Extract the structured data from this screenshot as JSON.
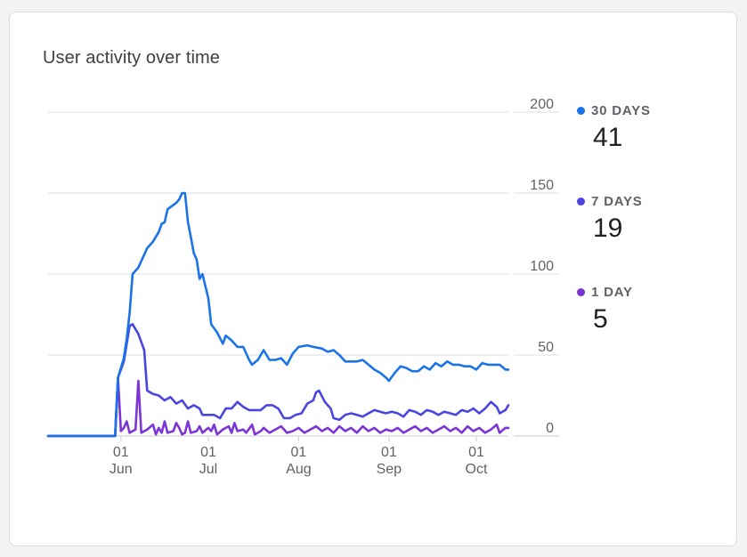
{
  "card": {
    "title": "User activity over time"
  },
  "legend": [
    {
      "label": "30 DAYS",
      "value": "41",
      "color": "#1a73e8"
    },
    {
      "label": "7 DAYS",
      "value": "19",
      "color": "#4a45e0"
    },
    {
      "label": "1 DAY",
      "value": "5",
      "color": "#7b34d6"
    }
  ],
  "chart_data": {
    "type": "line",
    "title": "User activity over time",
    "ylim": [
      0,
      200
    ],
    "yticks": [
      0,
      50,
      100,
      150,
      200
    ],
    "grid": true,
    "legend_placement": "right",
    "x_start": "2024-05-07",
    "x_end": "2024-10-12",
    "x_tick_dates": [
      "2024-06-01",
      "2024-07-01",
      "2024-08-01",
      "2024-09-01",
      "2024-10-01"
    ],
    "x_tick_labels": [
      {
        "day": "01",
        "month": "Jun"
      },
      {
        "day": "01",
        "month": "Jul"
      },
      {
        "day": "01",
        "month": "Aug"
      },
      {
        "day": "01",
        "month": "Sep"
      },
      {
        "day": "01",
        "month": "Oct"
      }
    ],
    "series": [
      {
        "name": "30 DAYS",
        "color": "#1a73e8",
        "points": [
          [
            "2024-05-07",
            0
          ],
          [
            "2024-05-30",
            0
          ],
          [
            "2024-05-31",
            36
          ],
          [
            "2024-06-02",
            48
          ],
          [
            "2024-06-03",
            60
          ],
          [
            "2024-06-04",
            76
          ],
          [
            "2024-06-05",
            100
          ],
          [
            "2024-06-07",
            104
          ],
          [
            "2024-06-08",
            108
          ],
          [
            "2024-06-10",
            116
          ],
          [
            "2024-06-12",
            120
          ],
          [
            "2024-06-14",
            126
          ],
          [
            "2024-06-15",
            131
          ],
          [
            "2024-06-16",
            132
          ],
          [
            "2024-06-17",
            140
          ],
          [
            "2024-06-20",
            144
          ],
          [
            "2024-06-21",
            146
          ],
          [
            "2024-06-22",
            150
          ],
          [
            "2024-06-23",
            150
          ],
          [
            "2024-06-24",
            132
          ],
          [
            "2024-06-25",
            123
          ],
          [
            "2024-06-26",
            113
          ],
          [
            "2024-06-27",
            109
          ],
          [
            "2024-06-28",
            97
          ],
          [
            "2024-06-29",
            100
          ],
          [
            "2024-07-01",
            85
          ],
          [
            "2024-07-02",
            69
          ],
          [
            "2024-07-04",
            64
          ],
          [
            "2024-07-06",
            57
          ],
          [
            "2024-07-07",
            62
          ],
          [
            "2024-07-09",
            59
          ],
          [
            "2024-07-11",
            55
          ],
          [
            "2024-07-13",
            55
          ],
          [
            "2024-07-15",
            47
          ],
          [
            "2024-07-16",
            44
          ],
          [
            "2024-07-18",
            47
          ],
          [
            "2024-07-20",
            53
          ],
          [
            "2024-07-22",
            47
          ],
          [
            "2024-07-24",
            47
          ],
          [
            "2024-07-26",
            48
          ],
          [
            "2024-07-28",
            44
          ],
          [
            "2024-07-30",
            51
          ],
          [
            "2024-08-01",
            55
          ],
          [
            "2024-08-04",
            56
          ],
          [
            "2024-08-06",
            55
          ],
          [
            "2024-08-09",
            54
          ],
          [
            "2024-08-11",
            52
          ],
          [
            "2024-08-13",
            53
          ],
          [
            "2024-08-15",
            50
          ],
          [
            "2024-08-17",
            46
          ],
          [
            "2024-08-19",
            46
          ],
          [
            "2024-08-21",
            46
          ],
          [
            "2024-08-23",
            47
          ],
          [
            "2024-08-25",
            44
          ],
          [
            "2024-08-27",
            41
          ],
          [
            "2024-08-29",
            39
          ],
          [
            "2024-08-31",
            36
          ],
          [
            "2024-09-01",
            34
          ],
          [
            "2024-09-03",
            39
          ],
          [
            "2024-09-05",
            43
          ],
          [
            "2024-09-07",
            42
          ],
          [
            "2024-09-09",
            40
          ],
          [
            "2024-09-11",
            40
          ],
          [
            "2024-09-13",
            43
          ],
          [
            "2024-09-15",
            41
          ],
          [
            "2024-09-17",
            45
          ],
          [
            "2024-09-19",
            43
          ],
          [
            "2024-09-21",
            46
          ],
          [
            "2024-09-23",
            44
          ],
          [
            "2024-09-25",
            44
          ],
          [
            "2024-09-27",
            43
          ],
          [
            "2024-09-29",
            43
          ],
          [
            "2024-10-01",
            41
          ],
          [
            "2024-10-03",
            45
          ],
          [
            "2024-10-05",
            44
          ],
          [
            "2024-10-07",
            44
          ],
          [
            "2024-10-09",
            44
          ],
          [
            "2024-10-11",
            41
          ],
          [
            "2024-10-12",
            41
          ]
        ]
      },
      {
        "name": "7 DAYS",
        "color": "#4a45e0",
        "points": [
          [
            "2024-05-07",
            0
          ],
          [
            "2024-05-30",
            0
          ],
          [
            "2024-05-31",
            36
          ],
          [
            "2024-06-02",
            46
          ],
          [
            "2024-06-04",
            68
          ],
          [
            "2024-06-05",
            69
          ],
          [
            "2024-06-07",
            63
          ],
          [
            "2024-06-09",
            53
          ],
          [
            "2024-06-10",
            28
          ],
          [
            "2024-06-12",
            26
          ],
          [
            "2024-06-14",
            25
          ],
          [
            "2024-06-16",
            22
          ],
          [
            "2024-06-18",
            24
          ],
          [
            "2024-06-20",
            20
          ],
          [
            "2024-06-22",
            22
          ],
          [
            "2024-06-24",
            17
          ],
          [
            "2024-06-26",
            19
          ],
          [
            "2024-06-28",
            17
          ],
          [
            "2024-06-29",
            13
          ],
          [
            "2024-07-01",
            13
          ],
          [
            "2024-07-03",
            13
          ],
          [
            "2024-07-05",
            11
          ],
          [
            "2024-07-07",
            17
          ],
          [
            "2024-07-09",
            17
          ],
          [
            "2024-07-11",
            21
          ],
          [
            "2024-07-13",
            18
          ],
          [
            "2024-07-15",
            16
          ],
          [
            "2024-07-17",
            16
          ],
          [
            "2024-07-19",
            16
          ],
          [
            "2024-07-21",
            19
          ],
          [
            "2024-07-23",
            19
          ],
          [
            "2024-07-25",
            17
          ],
          [
            "2024-07-27",
            11
          ],
          [
            "2024-07-29",
            11
          ],
          [
            "2024-07-31",
            13
          ],
          [
            "2024-08-02",
            14
          ],
          [
            "2024-08-04",
            20
          ],
          [
            "2024-08-06",
            22
          ],
          [
            "2024-08-07",
            27
          ],
          [
            "2024-08-08",
            28
          ],
          [
            "2024-08-10",
            21
          ],
          [
            "2024-08-12",
            17
          ],
          [
            "2024-08-13",
            11
          ],
          [
            "2024-08-15",
            10
          ],
          [
            "2024-08-17",
            13
          ],
          [
            "2024-08-19",
            14
          ],
          [
            "2024-08-21",
            13
          ],
          [
            "2024-08-23",
            12
          ],
          [
            "2024-08-25",
            14
          ],
          [
            "2024-08-27",
            16
          ],
          [
            "2024-08-29",
            15
          ],
          [
            "2024-08-31",
            14
          ],
          [
            "2024-09-02",
            15
          ],
          [
            "2024-09-04",
            14
          ],
          [
            "2024-09-06",
            12
          ],
          [
            "2024-09-08",
            16
          ],
          [
            "2024-09-10",
            15
          ],
          [
            "2024-09-12",
            13
          ],
          [
            "2024-09-14",
            16
          ],
          [
            "2024-09-16",
            15
          ],
          [
            "2024-09-18",
            13
          ],
          [
            "2024-09-20",
            15
          ],
          [
            "2024-09-22",
            14
          ],
          [
            "2024-09-24",
            13
          ],
          [
            "2024-09-26",
            16
          ],
          [
            "2024-09-28",
            15
          ],
          [
            "2024-09-30",
            17
          ],
          [
            "2024-10-02",
            14
          ],
          [
            "2024-10-04",
            17
          ],
          [
            "2024-10-06",
            21
          ],
          [
            "2024-10-08",
            18
          ],
          [
            "2024-10-09",
            14
          ],
          [
            "2024-10-11",
            16
          ],
          [
            "2024-10-12",
            19
          ]
        ]
      },
      {
        "name": "1 DAY",
        "color": "#7b34d6",
        "points": [
          [
            "2024-05-07",
            0
          ],
          [
            "2024-05-30",
            0
          ],
          [
            "2024-05-31",
            36
          ],
          [
            "2024-06-01",
            3
          ],
          [
            "2024-06-02",
            5
          ],
          [
            "2024-06-03",
            9
          ],
          [
            "2024-06-04",
            2
          ],
          [
            "2024-06-06",
            4
          ],
          [
            "2024-06-07",
            34
          ],
          [
            "2024-06-08",
            2
          ],
          [
            "2024-06-10",
            4
          ],
          [
            "2024-06-12",
            7
          ],
          [
            "2024-06-13",
            1
          ],
          [
            "2024-06-14",
            5
          ],
          [
            "2024-06-15",
            2
          ],
          [
            "2024-06-16",
            9
          ],
          [
            "2024-06-17",
            2
          ],
          [
            "2024-06-19",
            3
          ],
          [
            "2024-06-20",
            8
          ],
          [
            "2024-06-21",
            5
          ],
          [
            "2024-06-22",
            1
          ],
          [
            "2024-06-23",
            2
          ],
          [
            "2024-06-24",
            9
          ],
          [
            "2024-06-25",
            2
          ],
          [
            "2024-06-27",
            3
          ],
          [
            "2024-06-28",
            6
          ],
          [
            "2024-06-29",
            2
          ],
          [
            "2024-07-01",
            5
          ],
          [
            "2024-07-02",
            3
          ],
          [
            "2024-07-03",
            7
          ],
          [
            "2024-07-04",
            1
          ],
          [
            "2024-07-06",
            4
          ],
          [
            "2024-07-08",
            6
          ],
          [
            "2024-07-09",
            2
          ],
          [
            "2024-07-10",
            8
          ],
          [
            "2024-07-11",
            3
          ],
          [
            "2024-07-13",
            4
          ],
          [
            "2024-07-14",
            2
          ],
          [
            "2024-07-16",
            7
          ],
          [
            "2024-07-17",
            1
          ],
          [
            "2024-07-19",
            3
          ],
          [
            "2024-07-20",
            5
          ],
          [
            "2024-07-22",
            2
          ],
          [
            "2024-07-24",
            4
          ],
          [
            "2024-07-26",
            6
          ],
          [
            "2024-07-28",
            2
          ],
          [
            "2024-07-30",
            3
          ],
          [
            "2024-08-01",
            5
          ],
          [
            "2024-08-03",
            2
          ],
          [
            "2024-08-05",
            4
          ],
          [
            "2024-08-07",
            6
          ],
          [
            "2024-08-09",
            3
          ],
          [
            "2024-08-11",
            5
          ],
          [
            "2024-08-13",
            2
          ],
          [
            "2024-08-15",
            6
          ],
          [
            "2024-08-17",
            3
          ],
          [
            "2024-08-19",
            5
          ],
          [
            "2024-08-21",
            2
          ],
          [
            "2024-08-23",
            6
          ],
          [
            "2024-08-25",
            3
          ],
          [
            "2024-08-27",
            5
          ],
          [
            "2024-08-29",
            2
          ],
          [
            "2024-08-31",
            4
          ],
          [
            "2024-09-02",
            3
          ],
          [
            "2024-09-04",
            5
          ],
          [
            "2024-09-06",
            2
          ],
          [
            "2024-09-08",
            4
          ],
          [
            "2024-09-10",
            6
          ],
          [
            "2024-09-12",
            3
          ],
          [
            "2024-09-14",
            5
          ],
          [
            "2024-09-16",
            2
          ],
          [
            "2024-09-18",
            4
          ],
          [
            "2024-09-20",
            6
          ],
          [
            "2024-09-22",
            3
          ],
          [
            "2024-09-24",
            5
          ],
          [
            "2024-09-26",
            2
          ],
          [
            "2024-09-28",
            6
          ],
          [
            "2024-09-30",
            3
          ],
          [
            "2024-10-02",
            5
          ],
          [
            "2024-10-04",
            2
          ],
          [
            "2024-10-06",
            4
          ],
          [
            "2024-10-08",
            7
          ],
          [
            "2024-10-09",
            2
          ],
          [
            "2024-10-11",
            5
          ],
          [
            "2024-10-12",
            5
          ]
        ]
      }
    ]
  }
}
